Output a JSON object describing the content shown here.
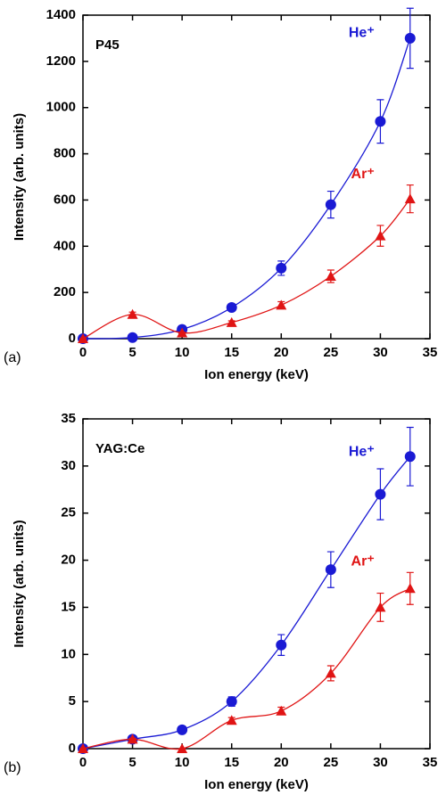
{
  "chart_data": [
    {
      "type": "scatter",
      "title": "P45",
      "panel_label": "(a)",
      "xlabel": "Ion energy (keV)",
      "ylabel": "Intensity  (arb. units)",
      "xlim": [
        0,
        35
      ],
      "xticks": [
        0,
        5,
        10,
        15,
        20,
        25,
        30,
        35
      ],
      "ylim": [
        0,
        1400
      ],
      "yticks": [
        0,
        200,
        400,
        600,
        800,
        1000,
        1200,
        1400
      ],
      "x": [
        0,
        5,
        10,
        15,
        20,
        25,
        30,
        33
      ],
      "series": [
        {
          "name": "He⁺",
          "color": "#1a1ad4",
          "marker": "circle",
          "values": [
            0,
            5,
            40,
            135,
            305,
            580,
            940,
            1300
          ],
          "errors": [
            0,
            1,
            4,
            14,
            31,
            58,
            94,
            130
          ]
        },
        {
          "name": "Ar⁺",
          "color": "#e01414",
          "marker": "triangle",
          "values": [
            0,
            105,
            25,
            70,
            145,
            270,
            445,
            605
          ],
          "errors": [
            0,
            10,
            3,
            7,
            15,
            27,
            45,
            60
          ]
        }
      ]
    },
    {
      "type": "scatter",
      "title": "YAG:Ce",
      "panel_label": "(b)",
      "xlabel": "Ion energy (keV)",
      "ylabel": "Intensity  (arb. units)",
      "xlim": [
        0,
        35
      ],
      "xticks": [
        0,
        5,
        10,
        15,
        20,
        25,
        30,
        35
      ],
      "ylim": [
        0,
        35
      ],
      "yticks": [
        0,
        5,
        10,
        15,
        20,
        25,
        30,
        35
      ],
      "x": [
        0,
        5,
        10,
        15,
        20,
        25,
        30,
        33
      ],
      "series": [
        {
          "name": "He⁺",
          "color": "#1a1ad4",
          "marker": "circle",
          "values": [
            0,
            1,
            2,
            5,
            11,
            19,
            27,
            31
          ],
          "errors": [
            0,
            0.1,
            0.2,
            0.5,
            1.1,
            1.9,
            2.7,
            3.1
          ]
        },
        {
          "name": "Ar⁺",
          "color": "#e01414",
          "marker": "triangle",
          "values": [
            0,
            1,
            0,
            3,
            4,
            8,
            15,
            17
          ],
          "errors": [
            0,
            0.1,
            0,
            0.3,
            0.4,
            0.8,
            1.5,
            1.7
          ]
        }
      ]
    }
  ]
}
